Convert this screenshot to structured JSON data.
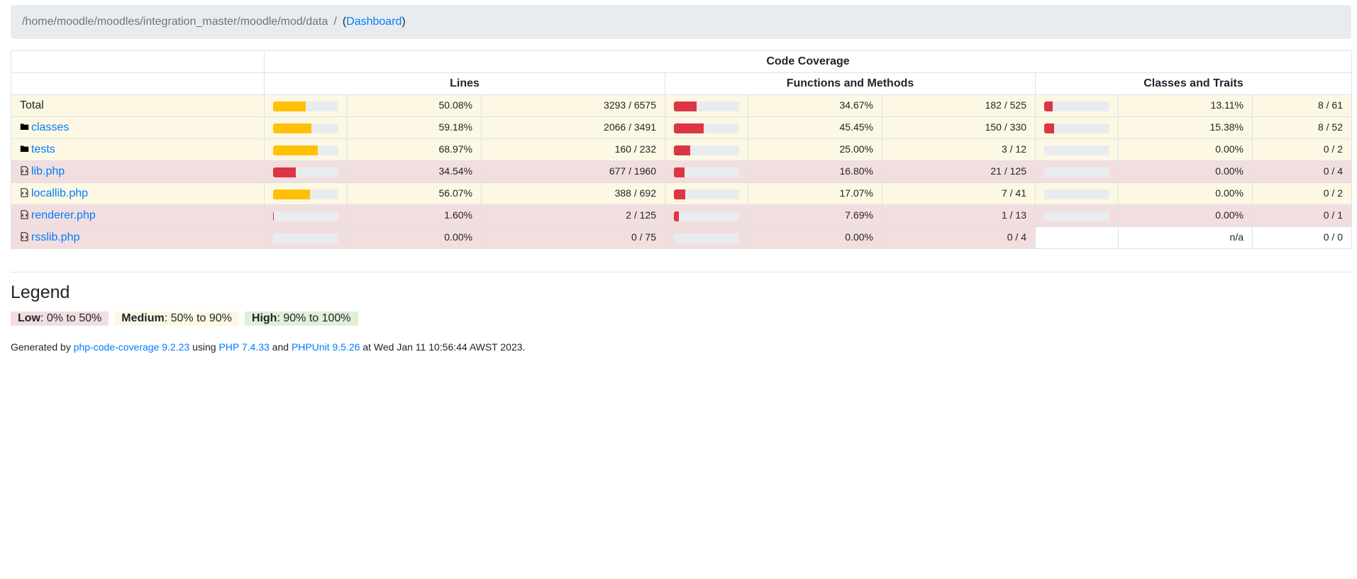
{
  "breadcrumb": {
    "path": "/home/moodle/moodles/integration_master/moodle/mod/data",
    "separator": "/",
    "open_paren": "(",
    "dashboard_link": "Dashboard",
    "close_paren": ")"
  },
  "table": {
    "header_group": "Code Coverage",
    "columns": [
      "Lines",
      "Functions and Methods",
      "Classes and Traits"
    ],
    "rows": [
      {
        "name": "Total",
        "type": "total",
        "class": "warning",
        "lines": {
          "pct": "50.08%",
          "count": "3293 / 6575",
          "fill": 50.08,
          "level": "medium"
        },
        "methods": {
          "pct": "34.67%",
          "count": "182 / 525",
          "fill": 34.67,
          "level": "low"
        },
        "classes": {
          "pct": "13.11%",
          "count": "8 / 61",
          "fill": 13.11,
          "level": "low"
        }
      },
      {
        "name": "classes",
        "type": "folder",
        "class": "warning",
        "lines": {
          "pct": "59.18%",
          "count": "2066 / 3491",
          "fill": 59.18,
          "level": "medium"
        },
        "methods": {
          "pct": "45.45%",
          "count": "150 / 330",
          "fill": 45.45,
          "level": "low"
        },
        "classes": {
          "pct": "15.38%",
          "count": "8 / 52",
          "fill": 15.38,
          "level": "low"
        }
      },
      {
        "name": "tests",
        "type": "folder",
        "class": "warning",
        "lines": {
          "pct": "68.97%",
          "count": "160 / 232",
          "fill": 68.97,
          "level": "medium"
        },
        "methods": {
          "pct": "25.00%",
          "count": "3 / 12",
          "fill": 25.0,
          "level": "low"
        },
        "classes": {
          "pct": "0.00%",
          "count": "0 / 2",
          "fill": 0,
          "level": "low"
        }
      },
      {
        "name": "lib.php",
        "type": "file",
        "class": "danger",
        "lines": {
          "pct": "34.54%",
          "count": "677 / 1960",
          "fill": 34.54,
          "level": "low"
        },
        "methods": {
          "pct": "16.80%",
          "count": "21 / 125",
          "fill": 16.8,
          "level": "low"
        },
        "classes": {
          "pct": "0.00%",
          "count": "0 / 4",
          "fill": 0,
          "level": "low"
        }
      },
      {
        "name": "locallib.php",
        "type": "file",
        "class": "warning",
        "lines": {
          "pct": "56.07%",
          "count": "388 / 692",
          "fill": 56.07,
          "level": "medium"
        },
        "methods": {
          "pct": "17.07%",
          "count": "7 / 41",
          "fill": 17.07,
          "level": "low"
        },
        "classes": {
          "pct": "0.00%",
          "count": "0 / 2",
          "fill": 0,
          "level": "low"
        }
      },
      {
        "name": "renderer.php",
        "type": "file",
        "class": "danger",
        "lines": {
          "pct": "1.60%",
          "count": "2 / 125",
          "fill": 1.6,
          "level": "low"
        },
        "methods": {
          "pct": "7.69%",
          "count": "1 / 13",
          "fill": 7.69,
          "level": "low"
        },
        "classes": {
          "pct": "0.00%",
          "count": "0 / 1",
          "fill": 0,
          "level": "low"
        }
      },
      {
        "name": "rsslib.php",
        "type": "file",
        "class": "danger",
        "lines": {
          "pct": "0.00%",
          "count": "0 / 75",
          "fill": 0,
          "level": "low"
        },
        "methods": {
          "pct": "0.00%",
          "count": "0 / 4",
          "fill": 0,
          "level": "low"
        },
        "classes": {
          "pct": "n/a",
          "count": "0 / 0",
          "fill": null,
          "level": "none"
        }
      }
    ]
  },
  "legend": {
    "title": "Legend",
    "low_label": "Low",
    "low_range": ": 0% to 50%",
    "medium_label": "Medium",
    "medium_range": ": 50% to 90%",
    "high_label": "High",
    "high_range": ": 90% to 100%"
  },
  "footer": {
    "generated_by": "Generated by ",
    "tool_link": "php-code-coverage 9.2.23",
    "using": " using ",
    "php_link": "PHP 7.4.33",
    "and": " and ",
    "phpunit_link": "PHPUnit 9.5.26",
    "timestamp": " at Wed Jan 11 10:56:44 AWST 2023."
  },
  "colors": {
    "low": "#dc3545",
    "medium": "#ffc107",
    "low_bg": "#f2dede",
    "medium_bg": "#fcf8e3",
    "high_bg": "#dff0d8"
  },
  "icons": {
    "folder": "folder-icon",
    "file": "file-code-icon"
  }
}
